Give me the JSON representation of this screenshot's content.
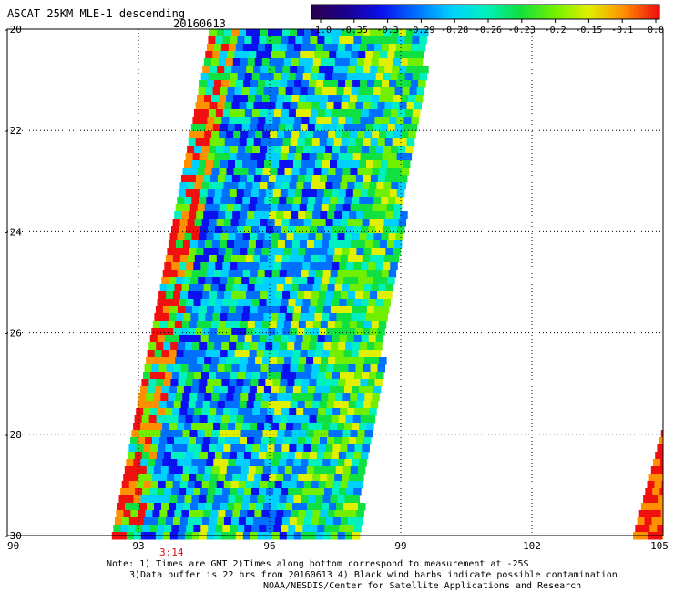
{
  "header": {
    "title": "ASCAT 25KM MLE-1 descending",
    "date": "20160613"
  },
  "colorbar": {
    "tick_labels": [
      "-1.0",
      "-0.35",
      "-0.3",
      "-0.29",
      "-0.28",
      "-0.26",
      "-0.23",
      "-0.2",
      "-0.15",
      "-0.1",
      "0.0"
    ],
    "colors": [
      "#2a0050",
      "#1a0090",
      "#0a10f0",
      "#0070ff",
      "#00d0ff",
      "#00f0c0",
      "#10e040",
      "#70f000",
      "#e0f000",
      "#ff9000",
      "#f01010"
    ]
  },
  "map": {
    "lon_labels": [
      "90",
      "93",
      "96",
      "99",
      "102",
      "105"
    ],
    "lat_labels": [
      "-20",
      "-22",
      "-24",
      "-26",
      "-28",
      "-30"
    ],
    "time_label": "3:14",
    "time_label_color": "#d01010"
  },
  "notes": {
    "line1": "Note: 1) Times are GMT 2)Times along bottom correspond to measurement at -25S",
    "line2": "3)Data buffer is 22 hrs from 20160613 4) Black wind barbs indicate possible contamination",
    "line3": "NOAA/NESDIS/Center for Satellite Applications and Research"
  }
}
